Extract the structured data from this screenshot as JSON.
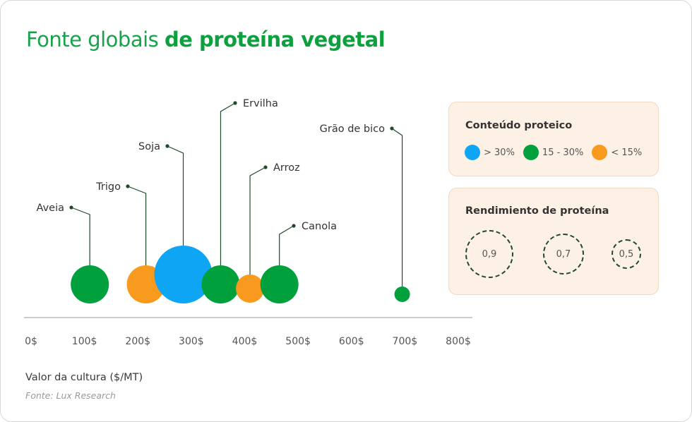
{
  "title": {
    "regular": "Fonte globais",
    "bold": "de proteína vegetal"
  },
  "colors": {
    "high": "#0ea5f5",
    "mid": "#00a03c",
    "low": "#f79a1e",
    "axis": "#9a9a9a",
    "leader": "#1f4a2c",
    "title": "#16a34a"
  },
  "chart_data": {
    "type": "scatter",
    "xlabel": "Valor da cultura ($/MT)",
    "ticks": [
      "0$",
      "100$",
      "200$",
      "300$",
      "400$",
      "500$",
      "600$",
      "700$",
      "800$"
    ],
    "xlim": [
      0,
      800
    ],
    "size_encoding": "Rendimiento de proteína",
    "color_encoding": "Conteúdo proteico",
    "points": [
      {
        "name": "Aveia",
        "x": 110,
        "protein": "15 - 30%",
        "color": "mid"
      },
      {
        "name": "Trigo",
        "x": 215,
        "protein": "< 15%",
        "color": "low"
      },
      {
        "name": "Soja",
        "x": 285,
        "protein": "> 30%",
        "color": "high"
      },
      {
        "name": "Ervilha",
        "x": 355,
        "protein": "15 - 30%",
        "color": "mid"
      },
      {
        "name": "Arroz",
        "x": 410,
        "protein": "< 15%",
        "color": "low"
      },
      {
        "name": "Canola",
        "x": 465,
        "protein": "15 - 30%",
        "color": "mid"
      },
      {
        "name": "Grão de bico",
        "x": 695,
        "protein": "15 - 30%",
        "color": "mid"
      }
    ]
  },
  "legend": {
    "protein_title": "Conteúdo proteico",
    "protein_items": [
      {
        "label": "> 30%",
        "color": "#0ea5f5"
      },
      {
        "label": "15 - 30%",
        "color": "#00a03c"
      },
      {
        "label": "< 15%",
        "color": "#f79a1e"
      }
    ],
    "yield_title": "Rendimiento de proteína",
    "yield_items": [
      {
        "label": "0,9"
      },
      {
        "label": "0,7"
      },
      {
        "label": "0,5"
      }
    ]
  },
  "source": "Fonte: Lux Research"
}
